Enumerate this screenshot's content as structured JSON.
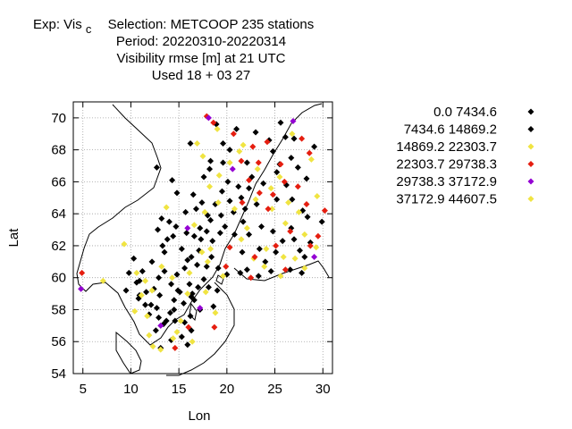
{
  "title": {
    "line1_prefix": "Exp: Vis",
    "line1_subscript": "c",
    "line1_suffix": "Selection: METCOOP    235 stations",
    "line2": "Period: 20220310-20220314",
    "line3": "Visibility rmse [m] at  21 UTC",
    "line4": "Used  18 + 03 27"
  },
  "chart_data": {
    "type": "scatter",
    "xlabel": "Lon",
    "ylabel": "Lat",
    "xlim": [
      4,
      31
    ],
    "ylim": [
      54,
      71
    ],
    "xticks": [
      5,
      10,
      15,
      20,
      25,
      30
    ],
    "yticks": [
      54,
      56,
      58,
      60,
      62,
      64,
      66,
      68,
      70
    ],
    "grid": true,
    "legend_position": "right",
    "series": [
      {
        "name": "0.0 7434.6",
        "color": "#000000",
        "points": [
          [
            9.5,
            59.2
          ],
          [
            9.8,
            60.3
          ],
          [
            10.3,
            61.2
          ],
          [
            10.6,
            59.7
          ],
          [
            11.2,
            60.4
          ],
          [
            10.8,
            58.7
          ],
          [
            11.6,
            59.1
          ],
          [
            12.1,
            58.3
          ],
          [
            11.9,
            57.7
          ],
          [
            12.6,
            56.7
          ],
          [
            13.1,
            55.6
          ],
          [
            13.4,
            57.1
          ],
          [
            14.1,
            57.8
          ],
          [
            14.5,
            58.6
          ],
          [
            15.1,
            59.1
          ],
          [
            15.5,
            58.4
          ],
          [
            16.2,
            57.6
          ],
          [
            16.6,
            58.6
          ],
          [
            17.0,
            59.4
          ],
          [
            17.6,
            59.9
          ],
          [
            18.1,
            59.4
          ],
          [
            16.1,
            59.6
          ],
          [
            14.8,
            60.2
          ],
          [
            15.6,
            60.6
          ],
          [
            16.3,
            61.3
          ],
          [
            15.3,
            61.8
          ],
          [
            14.4,
            62.6
          ],
          [
            13.5,
            61.6
          ],
          [
            12.8,
            63.0
          ],
          [
            14.7,
            63.2
          ],
          [
            16.6,
            62.6
          ],
          [
            17.3,
            62.4
          ],
          [
            17.9,
            62.9
          ],
          [
            18.3,
            63.6
          ],
          [
            19.4,
            63.9
          ],
          [
            17.4,
            64.7
          ],
          [
            18.8,
            64.6
          ],
          [
            20.3,
            64.8
          ],
          [
            21.2,
            65.7
          ],
          [
            20.1,
            66.0
          ],
          [
            22.3,
            65.6
          ],
          [
            17.6,
            66.3
          ],
          [
            18.3,
            67.3
          ],
          [
            19.6,
            68.4
          ],
          [
            21.0,
            69.3
          ],
          [
            23.0,
            69.1
          ],
          [
            25.6,
            69.7
          ],
          [
            24.4,
            68.6
          ],
          [
            27.0,
            68.7
          ],
          [
            26.7,
            67.5
          ],
          [
            26.2,
            65.8
          ],
          [
            25.2,
            64.9
          ],
          [
            26.8,
            64.9
          ],
          [
            23.6,
            63.2
          ],
          [
            22.3,
            62.7
          ],
          [
            21.6,
            61.6
          ],
          [
            22.1,
            60.5
          ],
          [
            24.6,
            60.4
          ],
          [
            26.6,
            60.5
          ],
          [
            27.8,
            60.3
          ],
          [
            28.1,
            61.3
          ],
          [
            27.0,
            62.4
          ],
          [
            28.7,
            62.2
          ],
          [
            25.8,
            62.3
          ],
          [
            21.4,
            60.3
          ],
          [
            20.0,
            60.2
          ],
          [
            18.6,
            58.2
          ],
          [
            17.2,
            58.0
          ],
          [
            15.6,
            57.2
          ],
          [
            14.2,
            56.1
          ],
          [
            16.3,
            56.7
          ],
          [
            13.0,
            58.9
          ],
          [
            12.9,
            60.0
          ],
          [
            13.5,
            60.4
          ],
          [
            14.2,
            59.6
          ],
          [
            12.2,
            61.0
          ],
          [
            13.3,
            62.0
          ],
          [
            14.0,
            63.5
          ],
          [
            15.7,
            64.1
          ],
          [
            16.5,
            65.2
          ],
          [
            14.3,
            66.1
          ],
          [
            12.7,
            66.9
          ],
          [
            16.2,
            68.4
          ],
          [
            18.9,
            69.6
          ],
          [
            20.3,
            68.0
          ],
          [
            22.1,
            67.2
          ],
          [
            25.2,
            66.6
          ],
          [
            28.3,
            66.2
          ],
          [
            29.1,
            68.2
          ],
          [
            27.4,
            66.9
          ],
          [
            23.8,
            65.9
          ],
          [
            17.2,
            63.1
          ],
          [
            13.8,
            62.4
          ],
          [
            16.9,
            60.8
          ],
          [
            18.4,
            61.3
          ],
          [
            15.3,
            56.3
          ],
          [
            12.9,
            57.5
          ],
          [
            11.5,
            58.3
          ],
          [
            10.9,
            59.8
          ],
          [
            19.1,
            60.6
          ],
          [
            16.8,
            64.3
          ],
          [
            20.8,
            62.7
          ],
          [
            23.4,
            61.8
          ],
          [
            24.8,
            62.9
          ],
          [
            19.5,
            65.4
          ],
          [
            26.7,
            63.1
          ],
          [
            29.9,
            63.5
          ],
          [
            14.9,
            59.2
          ],
          [
            15.8,
            62.8
          ],
          [
            18.0,
            63.9
          ],
          [
            21.9,
            64.3
          ],
          [
            25.5,
            67.1
          ],
          [
            13.7,
            57.3
          ],
          [
            17.1,
            61.7
          ],
          [
            19.8,
            63.2
          ],
          [
            23.1,
            64.6
          ],
          [
            27.9,
            64.2
          ],
          [
            12.4,
            59.3
          ],
          [
            15.9,
            55.8
          ],
          [
            19.6,
            67.2
          ],
          [
            24.0,
            61.0
          ],
          [
            21.7,
            63.5
          ],
          [
            18.5,
            62.3
          ],
          [
            14.5,
            58.0
          ],
          [
            16.4,
            59.0
          ]
        ]
      },
      {
        "name": "7434.6 14869.2",
        "color": "#000000",
        "points": [
          [
            10.9,
            58.9
          ],
          [
            12.7,
            58.1
          ],
          [
            14.6,
            57.3
          ],
          [
            16.3,
            58.8
          ],
          [
            17.9,
            60.7
          ],
          [
            19.3,
            62.8
          ],
          [
            20.7,
            64.1
          ],
          [
            22.6,
            66.3
          ],
          [
            24.8,
            67.9
          ],
          [
            26.1,
            68.8
          ],
          [
            28.4,
            63.8
          ],
          [
            25.1,
            61.6
          ],
          [
            23.3,
            60.1
          ],
          [
            19.0,
            59.2
          ],
          [
            15.9,
            61.1
          ],
          [
            13.2,
            63.7
          ],
          [
            14.8,
            65.3
          ],
          [
            18.2,
            66.8
          ],
          [
            21.5,
            65.0
          ],
          [
            27.6,
            61.7
          ]
        ]
      },
      {
        "name": "14869.2 22303.7",
        "color": "#f0e442",
        "points": [
          [
            7.1,
            59.8
          ],
          [
            9.3,
            62.1
          ],
          [
            10.6,
            60.3
          ],
          [
            11.1,
            58.9
          ],
          [
            11.7,
            57.6
          ],
          [
            11.9,
            56.4
          ],
          [
            13.1,
            55.5
          ],
          [
            14.4,
            56.2
          ],
          [
            15.2,
            57.3
          ],
          [
            16.4,
            56.0
          ],
          [
            17.8,
            59.1
          ],
          [
            18.8,
            57.8
          ],
          [
            17.4,
            61.6
          ],
          [
            16.6,
            63.3
          ],
          [
            17.7,
            64.1
          ],
          [
            18.2,
            65.7
          ],
          [
            19.2,
            66.4
          ],
          [
            20.3,
            67.2
          ],
          [
            21.7,
            68.3
          ],
          [
            23.2,
            66.8
          ],
          [
            24.7,
            64.3
          ],
          [
            26.1,
            63.4
          ],
          [
            27.5,
            64.1
          ],
          [
            28.1,
            62.7
          ],
          [
            27.1,
            61.2
          ],
          [
            25.6,
            60.1
          ],
          [
            23.9,
            60.7
          ],
          [
            22.8,
            61.2
          ],
          [
            24.1,
            61.8
          ],
          [
            26.8,
            69.0
          ],
          [
            28.8,
            67.4
          ],
          [
            25.5,
            66.3
          ],
          [
            22.1,
            63.1
          ],
          [
            19.6,
            60.1
          ],
          [
            18.0,
            61.0
          ],
          [
            14.3,
            60.0
          ],
          [
            12.2,
            59.2
          ],
          [
            10.4,
            57.9
          ],
          [
            13.7,
            64.4
          ],
          [
            16.9,
            68.4
          ],
          [
            19.0,
            69.3
          ],
          [
            15.9,
            59.0
          ],
          [
            21.5,
            62.4
          ],
          [
            29.3,
            61.9
          ],
          [
            26.4,
            64.7
          ],
          [
            24.6,
            65.6
          ]
        ]
      },
      {
        "name": "22303.7 29738.3",
        "color": "#e51e10",
        "points": [
          [
            4.9,
            60.3
          ],
          [
            18.7,
            56.9
          ],
          [
            19.9,
            60.7
          ],
          [
            22.5,
            60.0
          ],
          [
            22.9,
            61.3
          ],
          [
            25.1,
            62.0
          ],
          [
            26.6,
            62.9
          ],
          [
            28.7,
            62.0
          ],
          [
            29.5,
            62.6
          ],
          [
            30.2,
            64.2
          ],
          [
            28.3,
            64.6
          ],
          [
            27.4,
            65.7
          ],
          [
            26.0,
            66.0
          ],
          [
            24.8,
            65.2
          ],
          [
            23.4,
            65.3
          ],
          [
            22.3,
            66.1
          ],
          [
            21.5,
            67.3
          ],
          [
            22.7,
            68.2
          ],
          [
            24.2,
            68.5
          ],
          [
            25.6,
            67.1
          ],
          [
            27.8,
            68.7
          ],
          [
            28.6,
            67.8
          ],
          [
            20.7,
            69.0
          ],
          [
            18.6,
            69.7
          ],
          [
            17.9,
            70.1
          ],
          [
            23.3,
            67.2
          ],
          [
            24.3,
            64.3
          ],
          [
            21.6,
            64.7
          ],
          [
            20.3,
            61.9
          ],
          [
            16.0,
            56.9
          ],
          [
            14.6,
            55.6
          ],
          [
            26.1,
            60.5
          ]
        ]
      },
      {
        "name": "29738.3 37172.9",
        "color": "#9400d3",
        "points": [
          [
            4.8,
            59.3
          ],
          [
            26.9,
            69.8
          ],
          [
            18.1,
            70.0
          ],
          [
            20.6,
            66.8
          ],
          [
            15.9,
            63.1
          ],
          [
            13.1,
            57.0
          ],
          [
            17.2,
            58.1
          ],
          [
            29.1,
            61.3
          ]
        ]
      },
      {
        "name": "37172.9 44607.5",
        "color": "#f0e442",
        "points": [
          [
            12.3,
            55.7
          ],
          [
            14.8,
            56.6
          ],
          [
            16.1,
            60.3
          ],
          [
            19.1,
            64.7
          ],
          [
            21.3,
            67.9
          ],
          [
            23.0,
            64.9
          ],
          [
            25.9,
            61.3
          ],
          [
            28.1,
            60.6
          ],
          [
            29.4,
            65.1
          ],
          [
            18.3,
            61.8
          ],
          [
            13.2,
            60.7
          ],
          [
            11.5,
            59.8
          ],
          [
            20.8,
            64.3
          ],
          [
            17.5,
            67.6
          ]
        ]
      }
    ]
  }
}
